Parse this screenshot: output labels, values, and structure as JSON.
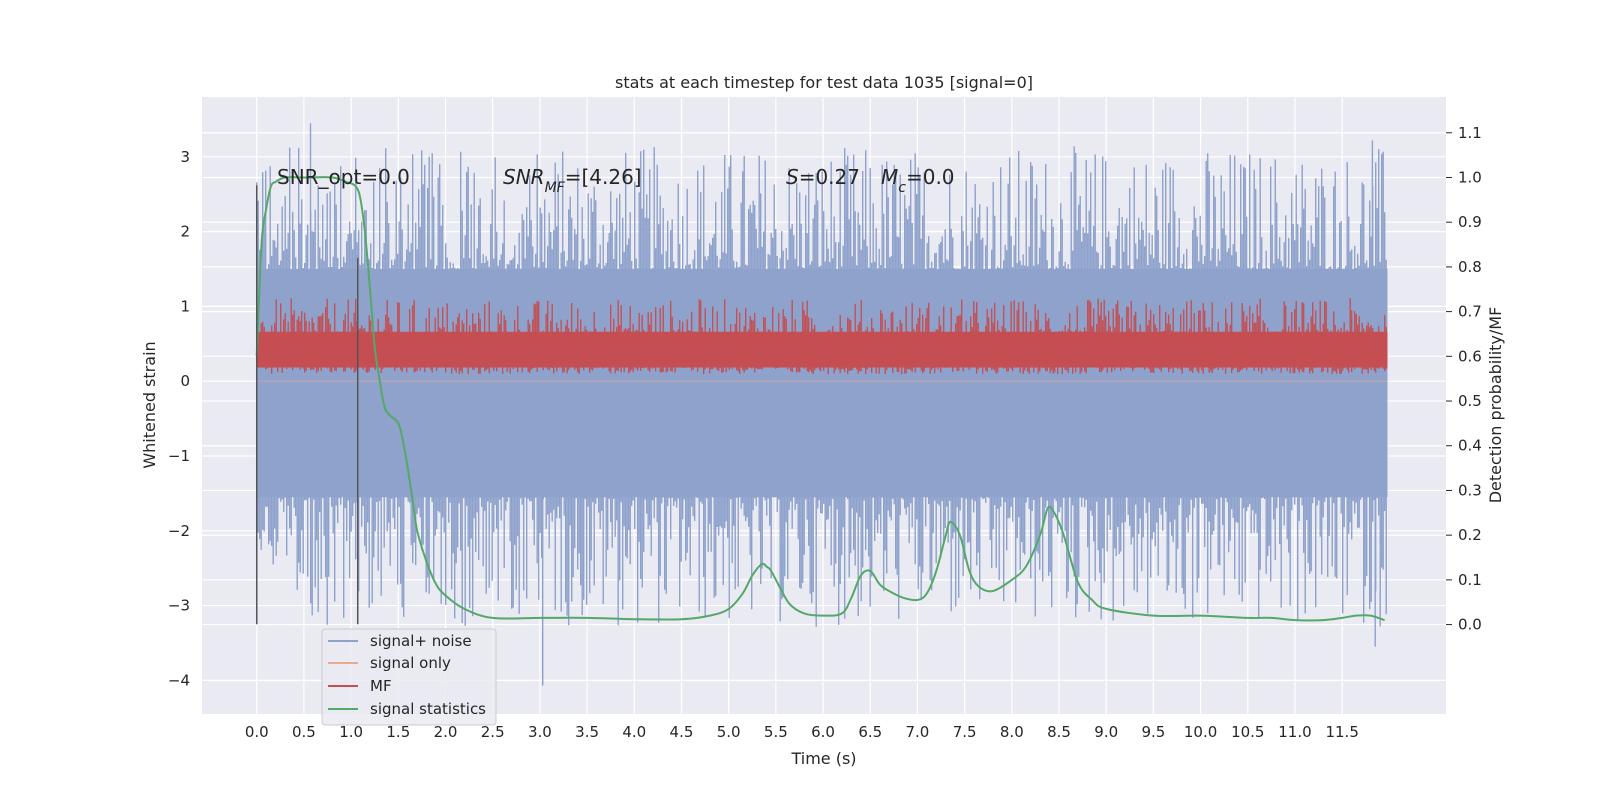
{
  "chart_data": {
    "type": "line",
    "title": "stats at each timestep for test data 1035 [signal=0]",
    "xlabel": "Time (s)",
    "ylabel_left": "Whitened strain",
    "ylabel_right": "Detection probability/MF",
    "xlim": [
      -0.58,
      12.6
    ],
    "ylim_left": [
      -4.45,
      3.8
    ],
    "ylim_right": [
      -0.2,
      1.18
    ],
    "grid": true,
    "background": "#eaeaf2",
    "x_ticks": [
      0.0,
      0.5,
      1.0,
      1.5,
      2.0,
      2.5,
      3.0,
      3.5,
      4.0,
      4.5,
      5.0,
      5.5,
      6.0,
      6.5,
      7.0,
      7.5,
      8.0,
      8.5,
      9.0,
      9.5,
      10.0,
      10.5,
      11.0,
      11.5
    ],
    "x_tick_labels": [
      "0.0",
      "0.5",
      "1.0",
      "1.5",
      "2.0",
      "2.5",
      "3.0",
      "3.5",
      "4.0",
      "4.5",
      "5.0",
      "5.5",
      "6.0",
      "6.5",
      "7.0",
      "7.5",
      "8.0",
      "8.5",
      "9.0",
      "9.5",
      "10.0",
      "10.5",
      "11.0",
      "11.5"
    ],
    "y_left_ticks": [
      3,
      2,
      1,
      0,
      -1,
      -2,
      -3,
      -4
    ],
    "y_left_tick_labels": [
      "3",
      "2",
      "1",
      "0",
      "−1",
      "−2",
      "−3",
      "−4"
    ],
    "y_right_ticks": [
      1.1,
      1.0,
      0.9,
      0.8,
      0.7,
      0.6,
      0.5,
      0.4,
      0.3,
      0.2,
      0.1,
      0.0
    ],
    "y_right_tick_labels": [
      "1.1",
      "1.0",
      "0.9",
      "0.8",
      "0.7",
      "0.6",
      "0.5",
      "0.4",
      "0.3",
      "0.2",
      "0.1",
      "0.0"
    ],
    "annotations": {
      "snr_opt": "SNR_opt=0.0",
      "snr_mf_main": "SNR",
      "snr_mf_sub": "MF",
      "snr_mf_rest": "=[4.26]",
      "s_main": "S",
      "s_rest": "=0.27",
      "mc_main": "M",
      "mc_sub": "c",
      "mc_rest": "=0.0"
    },
    "vertical_markers": [
      {
        "x": 0.0,
        "y_range": [
          -3.25,
          2.62
        ]
      },
      {
        "x": 1.07,
        "y_range": [
          -3.25,
          1.65
        ]
      }
    ],
    "legend": {
      "placement": "lower-left",
      "entries": [
        {
          "label": "signal+ noise",
          "color": "#8ea2cc"
        },
        {
          "label": "signal only",
          "color": "#e8a98f"
        },
        {
          "label": "MF",
          "color": "#c44e52"
        },
        {
          "label": "signal statistics",
          "color": "#55a868"
        }
      ]
    },
    "series": [
      {
        "name": "signal+ noise",
        "axis": "left",
        "color": "#8ea2cc",
        "style": "dense-noise",
        "x_range": [
          0.0,
          11.98
        ],
        "band": [
          -1.55,
          1.5
        ],
        "spike_extent": [
          -3.6,
          3.45
        ],
        "extremes": [
          {
            "x": 0.57,
            "y": 3.45
          },
          {
            "x": 3.03,
            "y": -4.07
          },
          {
            "x": 11.85,
            "y": -3.55
          },
          {
            "x": 11.82,
            "y": 3.22
          }
        ]
      },
      {
        "name": "signal only",
        "axis": "left",
        "color": "#e8a98f",
        "x_range": [
          0.0,
          11.98
        ],
        "y": 0.0
      },
      {
        "name": "MF",
        "axis": "right",
        "color": "#c44e52",
        "style": "dense-noise",
        "x_range": [
          0.0,
          11.98
        ],
        "band": [
          0.56,
          0.67
        ],
        "spike_extent": [
          0.56,
          0.73
        ]
      },
      {
        "name": "signal statistics",
        "axis": "right",
        "color": "#55a868",
        "x": [
          0.0,
          0.05,
          0.1,
          0.15,
          0.2,
          0.3,
          0.5,
          0.8,
          0.95,
          1.05,
          1.1,
          1.15,
          1.2,
          1.25,
          1.3,
          1.35,
          1.4,
          1.5,
          1.55,
          1.6,
          1.65,
          1.7,
          1.8,
          1.9,
          2.0,
          2.2,
          2.5,
          3.0,
          3.5,
          4.0,
          4.5,
          4.8,
          5.0,
          5.15,
          5.25,
          5.35,
          5.4,
          5.45,
          5.55,
          5.65,
          5.8,
          6.0,
          6.2,
          6.3,
          6.4,
          6.5,
          6.6,
          6.7,
          6.85,
          7.0,
          7.1,
          7.2,
          7.3,
          7.35,
          7.45,
          7.55,
          7.65,
          7.8,
          8.0,
          8.15,
          8.3,
          8.38,
          8.45,
          8.55,
          8.7,
          8.85,
          9.0,
          9.5,
          10.0,
          10.5,
          10.75,
          11.0,
          11.3,
          11.5,
          11.65,
          11.8,
          11.95
        ],
        "values": [
          0.6,
          0.85,
          0.93,
          0.98,
          0.99,
          1.0,
          1.0,
          1.0,
          0.99,
          0.98,
          0.95,
          0.87,
          0.75,
          0.62,
          0.55,
          0.49,
          0.47,
          0.45,
          0.41,
          0.35,
          0.28,
          0.21,
          0.14,
          0.09,
          0.065,
          0.035,
          0.015,
          0.015,
          0.015,
          0.012,
          0.012,
          0.02,
          0.035,
          0.07,
          0.11,
          0.135,
          0.13,
          0.12,
          0.08,
          0.045,
          0.025,
          0.02,
          0.025,
          0.06,
          0.11,
          0.12,
          0.09,
          0.075,
          0.06,
          0.055,
          0.07,
          0.12,
          0.2,
          0.23,
          0.2,
          0.12,
          0.085,
          0.075,
          0.1,
          0.13,
          0.2,
          0.26,
          0.25,
          0.2,
          0.095,
          0.055,
          0.035,
          0.02,
          0.02,
          0.015,
          0.015,
          0.01,
          0.01,
          0.015,
          0.02,
          0.02,
          0.01
        ]
      }
    ]
  }
}
